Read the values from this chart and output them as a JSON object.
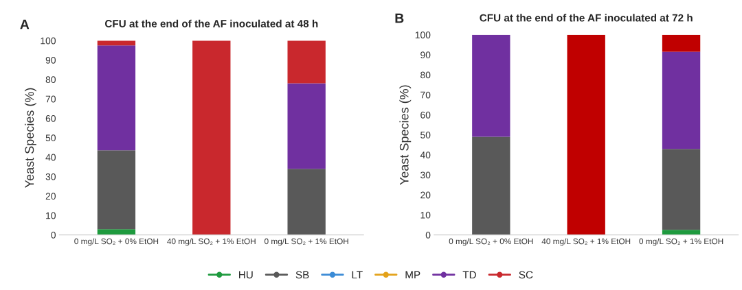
{
  "chart_data": [
    {
      "type": "bar",
      "title": "CFU at the end of the AF inoculated at 48 h",
      "annotations": [
        "A"
      ],
      "ylabel": "Yeast Species (%)",
      "stacked": true,
      "categories": [
        "0 mg/L SO₂ + 0% EtOH",
        "40 mg/L SO₂ + 1% EtOH",
        "0 mg/L SO₂ + 1% EtOH"
      ],
      "ylim": [
        0,
        100
      ],
      "yticks": [
        0,
        10,
        20,
        30,
        40,
        50,
        60,
        70,
        80,
        90,
        100
      ],
      "grid": false,
      "legend": "bottom",
      "marker": "circle",
      "series": [
        {
          "name": "HU",
          "color": "#1e9a3e",
          "values": [
            3,
            0,
            0
          ]
        },
        {
          "name": "SB",
          "color": "#595959",
          "values": [
            40.5,
            0,
            34
          ]
        },
        {
          "name": "LT",
          "color": "#3b8bd6",
          "values": [
            0,
            0,
            0
          ]
        },
        {
          "name": "MP",
          "color": "#e3a21a",
          "values": [
            0,
            0,
            0
          ]
        },
        {
          "name": "TD",
          "color": "#7030a0",
          "values": [
            54,
            0,
            44
          ]
        },
        {
          "name": "SC",
          "color": "#c9282d",
          "values": [
            2.5,
            100,
            22
          ]
        }
      ]
    },
    {
      "type": "bar",
      "title": "CFU at the end of the AF inoculated at 72 h",
      "annotations": [
        "B"
      ],
      "ylabel": "Yeast Species (%)",
      "stacked": true,
      "categories": [
        "0 mg/L SO₂ + 0% EtOH",
        "40 mg/L SO₂ + 1% EtOH",
        "0 mg/L SO₂ + 1% EtOH"
      ],
      "ylim": [
        0,
        100
      ],
      "yticks": [
        0,
        10,
        20,
        30,
        40,
        50,
        60,
        70,
        80,
        90,
        100
      ],
      "grid": false,
      "series": [
        {
          "color": "#1e9a3e",
          "values": [
            0,
            0,
            2.5
          ]
        },
        {
          "color": "#595959",
          "values": [
            49,
            0,
            40.5
          ]
        },
        {
          "color": "#3b8bd6",
          "values": [
            0,
            0,
            0
          ]
        },
        {
          "color": "#e3a21a",
          "values": [
            0,
            0,
            0
          ]
        },
        {
          "color": "#7030a0",
          "values": [
            51,
            0,
            48.5
          ]
        },
        {
          "color": "#c00000",
          "values": [
            0,
            100,
            8.5
          ]
        }
      ]
    }
  ]
}
